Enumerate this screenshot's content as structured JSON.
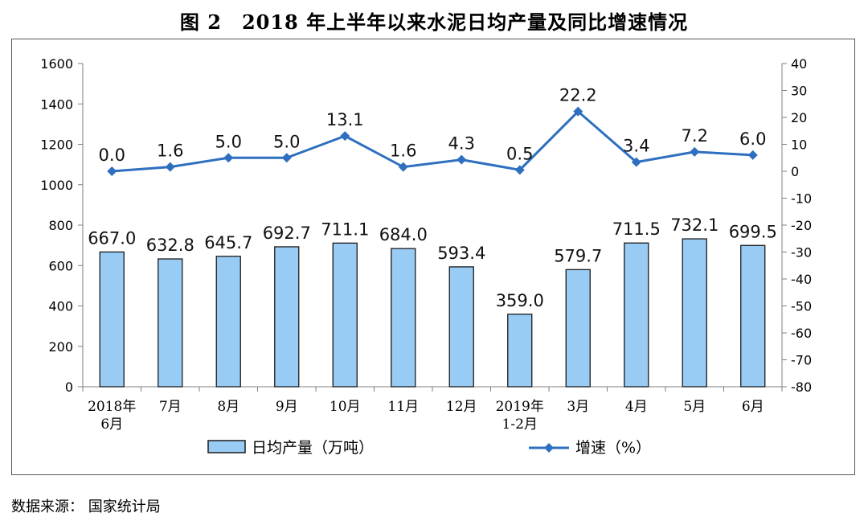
{
  "title": "图 2　2018 年上半年以来水泥日均产量及同比增速情况",
  "source": "数据来源：  国家统计局",
  "colors": {
    "bar_fill": "#99CCF5",
    "bar_stroke": "#1a1a1a",
    "line": "#2E6FBF",
    "axis": "#7f7f7f"
  },
  "chart_data": {
    "type": "bar+line",
    "categories": [
      "2018年\n6月",
      "7月",
      "8月",
      "9月",
      "10月",
      "11月",
      "12月",
      "2019年\n1-2月",
      "3月",
      "4月",
      "5月",
      "6月"
    ],
    "series": [
      {
        "name": "日均产量（万吨）",
        "type": "bar",
        "axis": "left",
        "values": [
          667.0,
          632.8,
          645.7,
          692.7,
          711.1,
          684.0,
          593.4,
          359.0,
          579.7,
          711.5,
          732.1,
          699.5
        ],
        "labels": [
          "667.0",
          "632.8",
          "645.7",
          "692.7",
          "711.1",
          "684.0",
          "593.4",
          "359.0",
          "579.7",
          "711.5",
          "732.1",
          "699.5"
        ]
      },
      {
        "name": "增速（%）",
        "type": "line",
        "axis": "right",
        "marker": "diamond",
        "values": [
          0.0,
          1.6,
          5.0,
          5.0,
          13.1,
          1.6,
          4.3,
          0.5,
          22.2,
          3.4,
          7.2,
          6.0
        ],
        "labels": [
          "0.0",
          "1.6",
          "5.0",
          "5.0",
          "13.1",
          "1.6",
          "4.3",
          "0.5",
          "22.2",
          "3.4",
          "7.2",
          "6.0"
        ]
      }
    ],
    "y_left": {
      "min": 0,
      "max": 1600,
      "ticks": [
        "0",
        "200",
        "400",
        "600",
        "800",
        "1000",
        "1200",
        "1400",
        "1600"
      ]
    },
    "y_right": {
      "min": -80,
      "max": 40,
      "ticks": [
        "-80",
        "-70",
        "-60",
        "-50",
        "-40",
        "-30",
        "-20",
        "-10",
        "0",
        "10",
        "20",
        "30",
        "40"
      ]
    },
    "grid": false,
    "legend": {
      "position": "bottom"
    }
  }
}
